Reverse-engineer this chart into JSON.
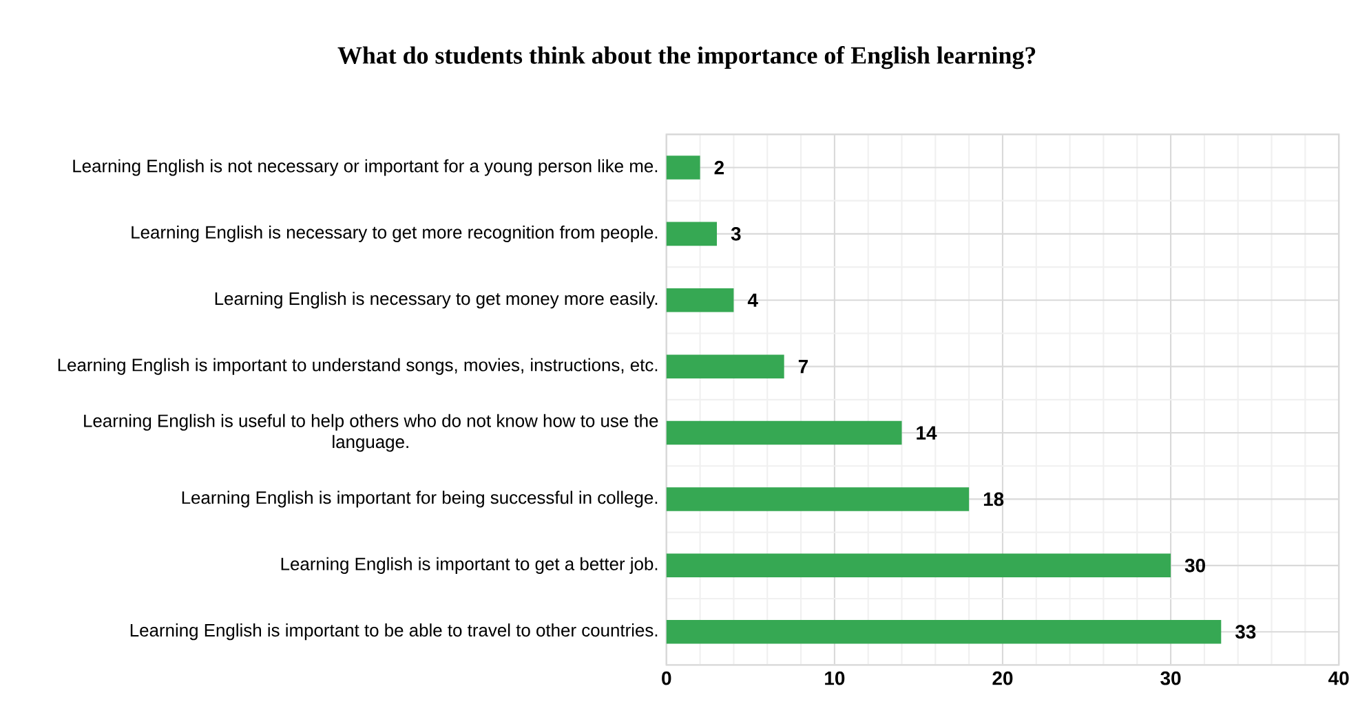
{
  "chart_data": {
    "type": "bar",
    "orientation": "horizontal",
    "title": "What do students think about the importance of English learning?",
    "categories": [
      "Learning English is not necessary or important for a young person like me.",
      "Learning English is necessary to get more recognition from people.",
      "Learning English is necessary to get money more easily.",
      "Learning English is important to understand songs, movies, instructions, etc.",
      "Learning English is useful to help others who do not know how to use the language.",
      "Learning English is important for being successful in college.",
      "Learning English is important to get a better job.",
      "Learning English is important to be able to travel to other countries."
    ],
    "values": [
      2,
      3,
      4,
      7,
      14,
      18,
      30,
      33
    ],
    "color": "#36a853",
    "xlim": [
      0,
      40
    ],
    "xticks": [
      0,
      10,
      20,
      30,
      40
    ],
    "grid": true,
    "data_labels": true
  }
}
